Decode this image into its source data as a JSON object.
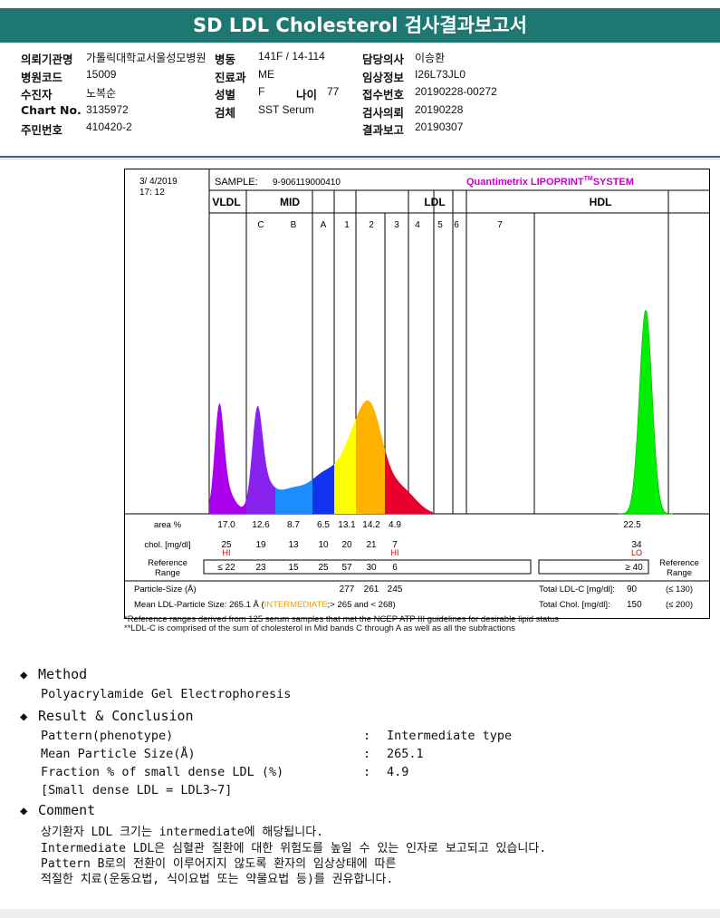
{
  "title": "SD LDL Cholesterol 검사결과보고서",
  "header": {
    "left": [
      {
        "label": "의뢰기관명",
        "value": "가톨릭대학교서울성모병원"
      },
      {
        "label": "병원코드",
        "value": "15009"
      },
      {
        "label": "수진자",
        "value": "노복순"
      },
      {
        "label": "Chart No.",
        "value": "3135972"
      },
      {
        "label": "주민번호",
        "value": "410420-2"
      }
    ],
    "middle": [
      {
        "label": "병동",
        "value": "141F / 14-114"
      },
      {
        "label": "진료과",
        "value": "ME"
      },
      {
        "label": "성별",
        "value": "F"
      },
      {
        "label": "검체",
        "value": "SST Serum"
      }
    ],
    "age": {
      "label": "나이",
      "value": "77"
    },
    "right": [
      {
        "label": "담당의사",
        "value": "이승환"
      },
      {
        "label": "임상정보",
        "value": "I26L73JL0"
      },
      {
        "label": "접수번호",
        "value": "20190228-00272"
      },
      {
        "label": "검사의뢰",
        "value": "20190228"
      },
      {
        "label": "결과보고",
        "value": "20190307"
      }
    ]
  },
  "report": {
    "date": "3/  4/2019",
    "time": "17: 12",
    "sample_label": "SAMPLE:",
    "sample_id": "9-906119000410",
    "system_name": "Quantimetrix LIPOPRINT",
    "system_tm": "TM",
    "system_suffix": "SYSTEM",
    "groups": [
      "VLDL",
      "MID",
      "LDL",
      "HDL"
    ],
    "bands": [
      "C",
      "B",
      "A",
      "1",
      "2",
      "3",
      "4",
      "5",
      "6",
      "7"
    ],
    "row_labels": {
      "area": "area %",
      "chol": "chol. [mg/dl]",
      "ref1": "Reference",
      "ref2": "Range",
      "size": "Particle-Size (Å)",
      "mean": "Mean LDL-Particle Size:"
    },
    "area": [
      "17.0",
      "12.6",
      "8.7",
      "6.5",
      "13.1",
      "14.2",
      "4.9"
    ],
    "hdl_area": "22.5",
    "chol": [
      "25",
      "19",
      "13",
      "10",
      "20",
      "21",
      "7"
    ],
    "chol_flags": [
      "HI",
      "",
      "",
      "",
      "",
      "",
      "HI"
    ],
    "hdl_chol": "34",
    "hdl_flag": "LO",
    "ref": [
      "≤ 22",
      "23",
      "15",
      "25",
      "57",
      "30",
      "6"
    ],
    "hdl_ref": "≥ 40",
    "ref_right1": "Reference",
    "ref_right2": "Range",
    "particle_sizes": [
      "277",
      "261",
      "245"
    ],
    "mean_size": "265.1 Å (",
    "mean_type": "INTERMEDIATE",
    "mean_tail": ";> 265 and < 268)",
    "total_ldl_label": "Total LDL-C [mg/dl]:",
    "total_ldl": "90",
    "total_ldl_ref": "(≤ 130)",
    "total_chol_label": "Total Chol. [mg/dl]:",
    "total_chol": "150",
    "total_chol_ref": "(≤ 200)",
    "flag_color": "#cc0000",
    "intermediate_color": "#f0a000"
  },
  "chart_data": {
    "type": "area",
    "title": "",
    "series": [
      {
        "name": "VLDL",
        "color": "#aa00ee",
        "values": [
          17.0
        ]
      },
      {
        "name": "MID C",
        "color": "#8822ee",
        "values": [
          12.6
        ]
      },
      {
        "name": "MID B",
        "color": "#1c8cff",
        "values": [
          8.7
        ]
      },
      {
        "name": "MID A",
        "color": "#1133ee",
        "values": [
          6.5
        ]
      },
      {
        "name": "LDL 1",
        "color": "#ffff00",
        "values": [
          13.1
        ]
      },
      {
        "name": "LDL 2",
        "color": "#ffb300",
        "values": [
          14.2
        ]
      },
      {
        "name": "LDL 3",
        "color": "#e8002c",
        "values": [
          4.9
        ]
      },
      {
        "name": "HDL",
        "color": "#00ee00",
        "values": [
          22.5
        ]
      }
    ]
  },
  "footnotes": [
    "*Reference ranges derived from 125 serum samples that met the NCEP ATP III guidelines for desirable lipid status",
    "**LDL-C is comprised of the sum of cholesterol in Mid bands C through A as well as all the subfractions"
  ],
  "method": {
    "heading": "Method",
    "text": "Polyacrylamide Gel Electrophoresis"
  },
  "result": {
    "heading": "Result & Conclusion",
    "rows": [
      {
        "label": "Pattern(phenotype)",
        "sep": ":",
        "value": "Intermediate type"
      },
      {
        "label": "Mean Particle Size(Å)",
        "sep": ":",
        "value": "265.1"
      },
      {
        "label": "Fraction % of small dense LDL (%)",
        "sep": ":",
        "value": "4.9"
      }
    ],
    "note": "[Small dense LDL = LDL3~7]"
  },
  "comment": {
    "heading": "Comment",
    "lines": [
      "상기환자 LDL 크기는 intermediate에 해당됩니다.",
      "Intermediate LDL은 심혈관 질환에 대한 위험도를 높일 수 있는 인자로 보고되고 있습니다.",
      "Pattern B로의 전환이 이루어지지 않도록 환자의 임상상태에 따른",
      "적절한 치료(운동요법, 식이요법 또는 약물요법 등)를 권유합니다."
    ]
  }
}
